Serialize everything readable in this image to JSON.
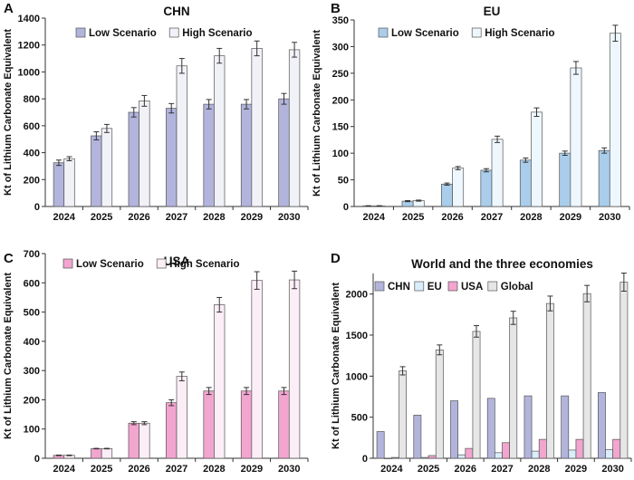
{
  "chart_data": [
    {
      "panel": "A",
      "type": "bar",
      "title": "CHN",
      "ylabel": "Kt of Lithium Carbonate Equivalent",
      "xlabel": "",
      "ylim": [
        0,
        1400
      ],
      "yticks": [
        0,
        200,
        400,
        600,
        800,
        1000,
        1200,
        1400
      ],
      "grid": false,
      "legend_position": "top-left",
      "categories": [
        "2024",
        "2025",
        "2026",
        "2027",
        "2028",
        "2029",
        "2030"
      ],
      "series": [
        {
          "name": "Low Scenario",
          "color": "#b2b4dc",
          "values": [
            325,
            525,
            700,
            730,
            760,
            760,
            800
          ],
          "errors": [
            20,
            30,
            35,
            35,
            35,
            35,
            40
          ]
        },
        {
          "name": "High Scenario",
          "color": "#f1f1f8",
          "values": [
            355,
            580,
            785,
            1045,
            1120,
            1175,
            1165
          ],
          "errors": [
            15,
            30,
            40,
            55,
            55,
            55,
            55
          ]
        }
      ]
    },
    {
      "panel": "B",
      "type": "bar",
      "title": "EU",
      "ylabel": "Kt of Lithium Carbonate Equivalent",
      "xlabel": "",
      "ylim": [
        0,
        350
      ],
      "yticks": [
        0,
        50,
        100,
        150,
        200,
        250,
        300,
        350
      ],
      "grid": false,
      "legend_position": "top-left",
      "categories": [
        "2024",
        "2025",
        "2026",
        "2027",
        "2028",
        "2029",
        "2030"
      ],
      "series": [
        {
          "name": "Low Scenario",
          "color": "#a9cdea",
          "values": [
            1,
            10,
            42,
            68,
            87,
            100,
            105
          ],
          "errors": [
            0.5,
            1,
            2,
            3,
            4,
            4,
            5
          ]
        },
        {
          "name": "High Scenario",
          "color": "#eef7fd",
          "values": [
            1,
            11,
            72,
            126,
            177,
            260,
            325
          ],
          "errors": [
            0.5,
            1,
            3,
            6,
            8,
            12,
            15
          ]
        }
      ]
    },
    {
      "panel": "C",
      "type": "bar",
      "title": "USA",
      "ylabel": "Kt of Lithium Carbonate Equivalent",
      "xlabel": "",
      "ylim": [
        0,
        700
      ],
      "yticks": [
        0,
        100,
        200,
        300,
        400,
        500,
        600,
        700
      ],
      "grid": false,
      "legend_position": "top-left",
      "categories": [
        "2024",
        "2025",
        "2026",
        "2027",
        "2028",
        "2029",
        "2030"
      ],
      "series": [
        {
          "name": "Low Scenario",
          "color": "#f2a5cf",
          "values": [
            10,
            33,
            120,
            190,
            230,
            230,
            230
          ],
          "errors": [
            1,
            1,
            5,
            10,
            12,
            12,
            12
          ]
        },
        {
          "name": "High Scenario",
          "color": "#fbeef6",
          "values": [
            10,
            33,
            120,
            280,
            525,
            608,
            610
          ],
          "errors": [
            1,
            1,
            5,
            15,
            25,
            30,
            30
          ]
        }
      ]
    },
    {
      "panel": "D",
      "type": "bar",
      "title": "World and the three economies",
      "ylabel": "Kt of Lithium Carbonate Equivalent",
      "xlabel": "",
      "ylim": [
        0,
        2250
      ],
      "yticks": [
        0,
        500,
        1000,
        1500,
        2000
      ],
      "grid": false,
      "legend_position": "top-left",
      "categories": [
        "2024",
        "2025",
        "2026",
        "2027",
        "2028",
        "2029",
        "2030"
      ],
      "series": [
        {
          "name": "CHN",
          "color": "#b2b4dc",
          "values": [
            325,
            525,
            700,
            730,
            760,
            760,
            800
          ],
          "errors": null
        },
        {
          "name": "EU",
          "color": "#d9eefa",
          "values": [
            1,
            10,
            42,
            68,
            87,
            100,
            105
          ],
          "errors": null
        },
        {
          "name": "USA",
          "color": "#f2a5cf",
          "values": [
            10,
            33,
            120,
            190,
            230,
            230,
            230
          ],
          "errors": null
        },
        {
          "name": "Global",
          "color": "#e6e6e6",
          "values": [
            1065,
            1320,
            1545,
            1710,
            1885,
            2005,
            2145
          ],
          "errors": [
            50,
            60,
            70,
            80,
            90,
            100,
            110
          ]
        }
      ]
    }
  ]
}
